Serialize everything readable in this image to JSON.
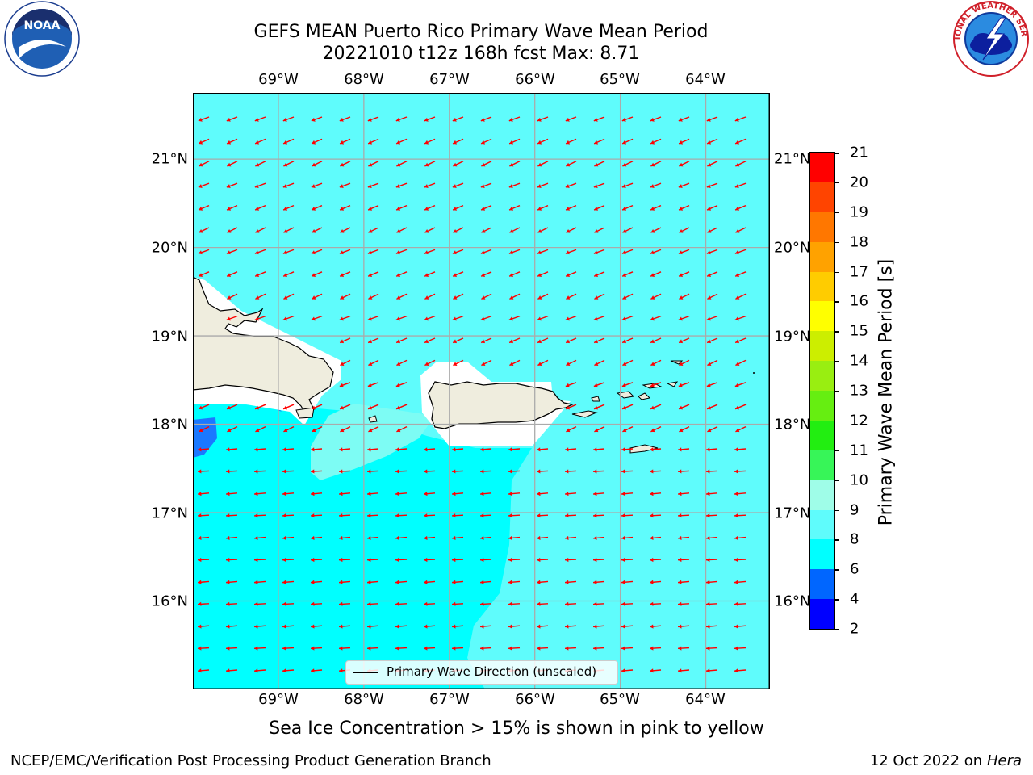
{
  "header": {
    "title_line1": "GEFS MEAN Puerto Rico Primary Wave Mean Period",
    "title_line2": "20221010 t12z 168h fcst   Max: 8.71"
  },
  "logos": {
    "noaa_text": "NOAA",
    "noaa_ring_text": "NATIONAL OCEANIC AND ATMOSPHERIC ADMINISTRATION · U.S. DEPARTMENT OF COMMERCE",
    "nws_ring_text": "NATIONAL WEATHER SERVICE"
  },
  "axes": {
    "lon_labels": [
      "69°W",
      "68°W",
      "67°W",
      "66°W",
      "65°W",
      "64°W"
    ],
    "lat_labels": [
      "21°N",
      "20°N",
      "19°N",
      "18°N",
      "17°N",
      "16°N"
    ]
  },
  "colorbar": {
    "title": "Primary Wave Mean Period [s]",
    "levels": [
      2,
      4,
      6,
      8,
      9,
      10,
      11,
      12,
      13,
      14,
      15,
      16,
      17,
      18,
      19,
      20,
      21
    ],
    "colors": [
      "#0000ff",
      "#0066ff",
      "#00ffff",
      "#5ffcfc",
      "#9ffde8",
      "#37f558",
      "#22ee11",
      "#66ee11",
      "#99ee11",
      "#ccee00",
      "#ffff00",
      "#ffcc00",
      "#ffa200",
      "#ff7700",
      "#ff4400",
      "#ff0000"
    ]
  },
  "map": {
    "region": "Puerto Rico",
    "lon_range": [
      -70,
      -63.25
    ],
    "lat_range": [
      15,
      21.75
    ],
    "ocean_color": "#5ffcfc",
    "lower_band_color": "#00ffff",
    "land_color": "#efedde",
    "arrow_color": "#ff0000"
  },
  "legend": {
    "label": "Primary Wave Direction (unscaled)"
  },
  "footer": {
    "note": "Sea Ice Concentration > 15% is shown in pink to yellow",
    "left": "NCEP/EMC/Verification Post Processing Product Generation Branch",
    "right_prefix": "12 Oct 2022 on ",
    "right_host": "Hera"
  }
}
